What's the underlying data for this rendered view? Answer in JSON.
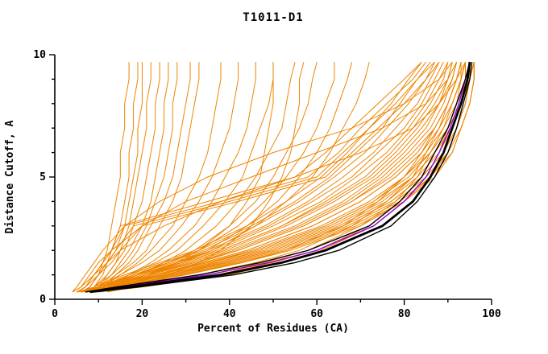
{
  "chart_data": {
    "type": "line",
    "title": "T1011-D1",
    "xlabel": "Percent of Residues (CA)",
    "ylabel": "Distance Cutoff, A",
    "xlim": [
      0,
      100
    ],
    "ylim": [
      0,
      10
    ],
    "grid": false,
    "legend": "none",
    "x_major_ticks": [
      0,
      20,
      40,
      60,
      80,
      100
    ],
    "x_minor_step": 10,
    "y_major_ticks": [
      0,
      5,
      10
    ],
    "y_minor_step": 1,
    "axis_color": "#000000",
    "cutoffs": [
      0.3,
      0.5,
      1,
      1.5,
      2,
      3,
      4,
      5,
      6,
      7,
      8,
      9,
      9.7
    ],
    "groups": [
      {
        "name": "model-curves-orange",
        "color": "#EE8500",
        "width": 1,
        "curves": [
          [
            7,
            8,
            10,
            11,
            12,
            13,
            14,
            15,
            15,
            16,
            16,
            17,
            17
          ],
          [
            8,
            9,
            11,
            12,
            13,
            15,
            16,
            17,
            17,
            18,
            18,
            19,
            19
          ],
          [
            6,
            8,
            10,
            12,
            14,
            16,
            17,
            18,
            19,
            19,
            20,
            20,
            20
          ],
          [
            9,
            10,
            12,
            14,
            15,
            17,
            18,
            19,
            20,
            21,
            21,
            22,
            22
          ],
          [
            7,
            9,
            12,
            14,
            16,
            18,
            20,
            21,
            22,
            23,
            23,
            24,
            24
          ],
          [
            8,
            10,
            13,
            15,
            17,
            20,
            22,
            23,
            24,
            25,
            25,
            26,
            26
          ],
          [
            6,
            9,
            13,
            16,
            18,
            21,
            23,
            25,
            26,
            27,
            27,
            28,
            28
          ],
          [
            9,
            11,
            14,
            17,
            19,
            22,
            25,
            27,
            28,
            29,
            30,
            31,
            31
          ],
          [
            7,
            10,
            14,
            18,
            21,
            24,
            27,
            29,
            30,
            31,
            32,
            33,
            33
          ],
          [
            8,
            11,
            15,
            19,
            22,
            27,
            30,
            33,
            35,
            36,
            37,
            38,
            38
          ],
          [
            6,
            10,
            15,
            20,
            24,
            29,
            33,
            36,
            38,
            40,
            41,
            42,
            42
          ],
          [
            9,
            12,
            17,
            22,
            26,
            32,
            36,
            39,
            42,
            44,
            45,
            46,
            46
          ],
          [
            7,
            11,
            17,
            23,
            28,
            34,
            39,
            43,
            45,
            47,
            49,
            50,
            50
          ],
          [
            10,
            13,
            19,
            25,
            30,
            37,
            42,
            46,
            49,
            52,
            53,
            54,
            55
          ],
          [
            8,
            12,
            19,
            26,
            32,
            40,
            46,
            50,
            53,
            56,
            58,
            59,
            60
          ],
          [
            6,
            11,
            18,
            26,
            33,
            42,
            48,
            53,
            57,
            60,
            62,
            64,
            64
          ],
          [
            9,
            14,
            21,
            28,
            35,
            44,
            51,
            56,
            60,
            63,
            65,
            67,
            68
          ],
          [
            7,
            13,
            21,
            29,
            36,
            46,
            53,
            59,
            63,
            66,
            69,
            71,
            72
          ],
          [
            5,
            9,
            16,
            24,
            32,
            44,
            53,
            61,
            67,
            72,
            77,
            81,
            84
          ],
          [
            6,
            10,
            17,
            25,
            33,
            45,
            55,
            63,
            69,
            75,
            79,
            83,
            86
          ],
          [
            7,
            11,
            18,
            26,
            34,
            46,
            56,
            64,
            71,
            76,
            81,
            85,
            87
          ],
          [
            5,
            10,
            18,
            27,
            35,
            48,
            58,
            66,
            73,
            78,
            83,
            86,
            88
          ],
          [
            8,
            12,
            19,
            28,
            36,
            49,
            59,
            68,
            74,
            80,
            84,
            87,
            89
          ],
          [
            6,
            11,
            19,
            28,
            37,
            50,
            61,
            69,
            76,
            81,
            85,
            88,
            90
          ],
          [
            7,
            12,
            20,
            29,
            38,
            52,
            62,
            71,
            77,
            82,
            86,
            89,
            90
          ],
          [
            5,
            10,
            19,
            29,
            38,
            52,
            63,
            72,
            78,
            83,
            87,
            90,
            91
          ],
          [
            8,
            13,
            21,
            30,
            39,
            53,
            64,
            73,
            79,
            84,
            88,
            90,
            91
          ],
          [
            6,
            12,
            21,
            31,
            40,
            55,
            66,
            74,
            80,
            85,
            88,
            91,
            92
          ],
          [
            7,
            13,
            22,
            32,
            41,
            56,
            67,
            75,
            81,
            86,
            89,
            91,
            92
          ],
          [
            9,
            14,
            23,
            33,
            42,
            57,
            68,
            76,
            82,
            87,
            90,
            92,
            93
          ],
          [
            5,
            11,
            21,
            32,
            42,
            57,
            68,
            77,
            83,
            87,
            90,
            92,
            93
          ],
          [
            8,
            14,
            24,
            34,
            44,
            59,
            70,
            78,
            84,
            88,
            91,
            93,
            93
          ],
          [
            6,
            12,
            23,
            34,
            44,
            59,
            70,
            78,
            84,
            88,
            91,
            93,
            94
          ],
          [
            7,
            13,
            24,
            35,
            45,
            61,
            72,
            80,
            85,
            89,
            92,
            93,
            94
          ],
          [
            9,
            15,
            25,
            36,
            46,
            62,
            73,
            80,
            86,
            90,
            92,
            94,
            94
          ],
          [
            5,
            12,
            23,
            35,
            46,
            62,
            73,
            81,
            86,
            90,
            92,
            94,
            95
          ],
          [
            8,
            14,
            25,
            37,
            47,
            63,
            74,
            82,
            87,
            90,
            93,
            94,
            95
          ],
          [
            6,
            13,
            25,
            37,
            48,
            64,
            75,
            82,
            87,
            91,
            93,
            95,
            95
          ],
          [
            7,
            14,
            26,
            38,
            49,
            65,
            76,
            83,
            88,
            91,
            93,
            95,
            95
          ],
          [
            9,
            16,
            27,
            39,
            50,
            66,
            77,
            84,
            89,
            92,
            94,
            95,
            96
          ],
          [
            5,
            13,
            26,
            39,
            50,
            66,
            77,
            84,
            89,
            92,
            94,
            95,
            96
          ],
          [
            8,
            15,
            27,
            40,
            51,
            67,
            78,
            85,
            90,
            92,
            94,
            95,
            96
          ],
          [
            6,
            14,
            28,
            41,
            52,
            68,
            79,
            86,
            90,
            93,
            95,
            96,
            96
          ],
          [
            10,
            17,
            29,
            42,
            53,
            69,
            80,
            86,
            91,
            93,
            95,
            96,
            96
          ],
          [
            7,
            15,
            29,
            43,
            54,
            70,
            80,
            87,
            91,
            93,
            95,
            96,
            96
          ],
          [
            4,
            6,
            8,
            10,
            13,
            20,
            30,
            45,
            60,
            75,
            85,
            90,
            92
          ],
          [
            5,
            7,
            9,
            12,
            15,
            25,
            38,
            55,
            70,
            82,
            88,
            92,
            94
          ],
          [
            4,
            5,
            7,
            9,
            11,
            16,
            24,
            35,
            50,
            68,
            80,
            88,
            91
          ],
          [
            10,
            15,
            22,
            28,
            33,
            40,
            44,
            47,
            48,
            49,
            50,
            50,
            50
          ],
          [
            12,
            18,
            26,
            33,
            38,
            45,
            49,
            52,
            54,
            55,
            56,
            56,
            57
          ],
          [
            5,
            7,
            9,
            11,
            13,
            15,
            35,
            55,
            62,
            68,
            74,
            80,
            84
          ],
          [
            6,
            8,
            10,
            12,
            14,
            18,
            40,
            60,
            66,
            72,
            78,
            83,
            87
          ],
          [
            4,
            6,
            9,
            11,
            13,
            16,
            38,
            58,
            65,
            70,
            76,
            82,
            85
          ],
          [
            5,
            7,
            10,
            13,
            15,
            20,
            42,
            62,
            68,
            74,
            80,
            85,
            88
          ],
          [
            8,
            16,
            35,
            48,
            58,
            70,
            78,
            83,
            86,
            89,
            91,
            93,
            94
          ],
          [
            9,
            18,
            37,
            50,
            60,
            72,
            79,
            84,
            87,
            90,
            92,
            94,
            95
          ],
          [
            7,
            15,
            33,
            46,
            56,
            68,
            76,
            82,
            85,
            88,
            90,
            92,
            93
          ],
          [
            10,
            20,
            40,
            52,
            61,
            73,
            80,
            85,
            88,
            90,
            92,
            94,
            95
          ],
          [
            6,
            13,
            30,
            43,
            53,
            66,
            74,
            80,
            84,
            87,
            90,
            92,
            93
          ]
        ]
      },
      {
        "name": "highlight-curve-purple",
        "color": "#9400D3",
        "width": 1.4,
        "curves": [
          [
            7,
            15,
            35,
            49,
            60,
            73,
            80,
            85,
            88,
            90.5,
            92.5,
            94,
            95
          ]
        ]
      },
      {
        "name": "highlight-curves-black",
        "color": "#000000",
        "width": 1.4,
        "curves": [
          [
            7,
            14,
            33,
            47,
            58,
            72,
            79,
            84,
            87,
            90,
            92,
            94,
            95
          ],
          [
            9,
            19,
            41,
            55,
            65,
            77,
            83,
            87,
            90,
            92,
            93.5,
            95,
            95.5
          ]
        ]
      },
      {
        "name": "best-model-curve-black-thick",
        "color": "#000000",
        "width": 2.8,
        "curves": [
          [
            8,
            17,
            38,
            52,
            62,
            75,
            82,
            86,
            89,
            91,
            93,
            94.5,
            95
          ]
        ]
      }
    ]
  }
}
